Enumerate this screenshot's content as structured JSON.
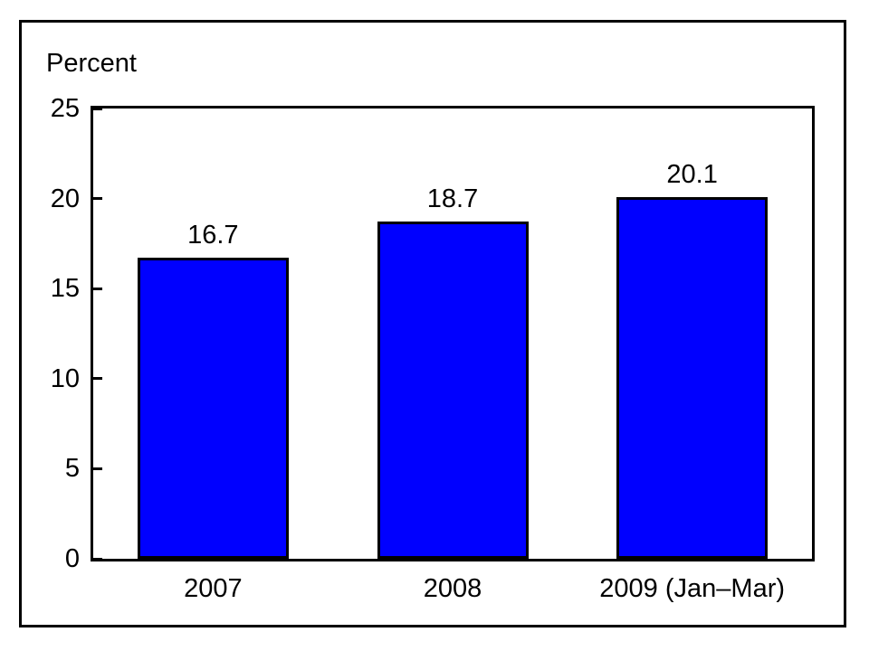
{
  "chart_data": {
    "type": "bar",
    "title": "",
    "ylabel": "Percent",
    "xlabel": "",
    "categories": [
      "2007",
      "2008",
      "2009 (Jan–Mar)"
    ],
    "values": [
      16.7,
      18.7,
      20.1
    ],
    "bar_value_labels": [
      "16.7",
      "18.7",
      "20.1"
    ],
    "y_ticks": [
      0,
      5,
      10,
      15,
      20,
      25
    ],
    "ylim": [
      0,
      25
    ],
    "grid": "off",
    "legend": "none",
    "colors": {
      "bar_fill": "#0000ff",
      "bar_stroke": "#000000",
      "axis": "#000000",
      "text": "#000000",
      "background": "#ffffff"
    }
  }
}
